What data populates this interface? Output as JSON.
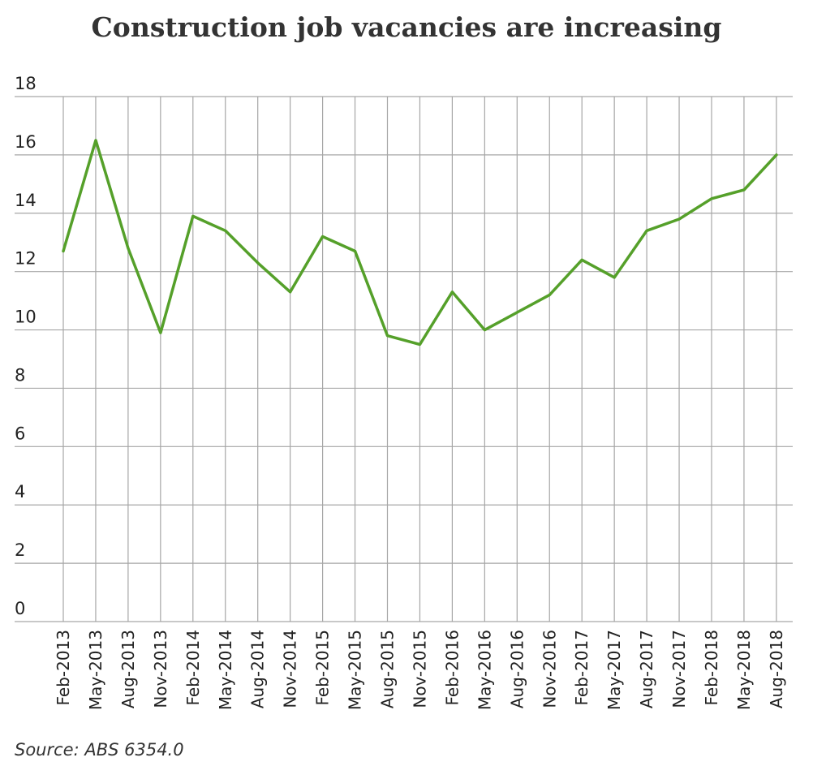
{
  "title": "Construction job vacancies are increasing",
  "source": "Source: ABS 6354.0",
  "colors": {
    "line": "#55a02a",
    "grid": "#a6a6a6",
    "text": "#222222"
  },
  "chart_data": {
    "type": "line",
    "title": "Construction job vacancies are increasing",
    "xlabel": "",
    "ylabel": "",
    "categories": [
      "Feb-2013",
      "May-2013",
      "Aug-2013",
      "Nov-2013",
      "Feb-2014",
      "May-2014",
      "Aug-2014",
      "Nov-2014",
      "Feb-2015",
      "May-2015",
      "Aug-2015",
      "Nov-2015",
      "Feb-2016",
      "May-2016",
      "Aug-2016",
      "Nov-2016",
      "Feb-2017",
      "May-2017",
      "Aug-2017",
      "Nov-2017",
      "Feb-2018",
      "May-2018",
      "Aug-2018"
    ],
    "series": [
      {
        "values": [
          12.7,
          16.5,
          12.8,
          9.9,
          13.9,
          13.4,
          12.3,
          11.3,
          13.2,
          12.7,
          9.8,
          9.5,
          11.3,
          10.0,
          10.6,
          11.2,
          12.4,
          11.8,
          13.4,
          13.8,
          14.5,
          14.8,
          16.0
        ]
      }
    ],
    "ylim": [
      0,
      18
    ],
    "yticks": [
      0,
      2,
      4,
      6,
      8,
      10,
      12,
      14,
      16,
      18
    ],
    "grid": true,
    "legend": "none"
  }
}
